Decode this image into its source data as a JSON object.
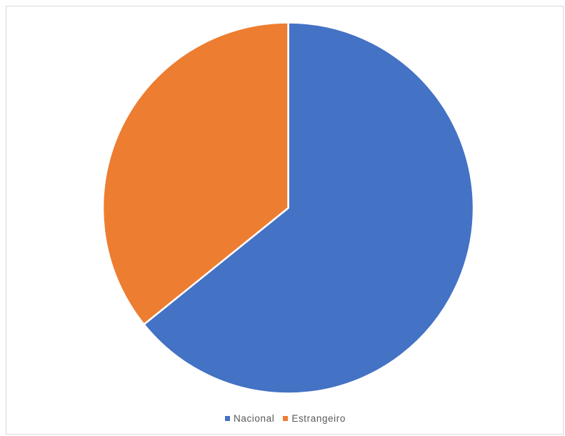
{
  "chart_data": {
    "type": "pie",
    "title": "",
    "slices": [
      {
        "name": "Nacional",
        "value": 64.2,
        "color": "#4472c4"
      },
      {
        "name": "Estrangeiro",
        "value": 35.8,
        "color": "#ed7d31"
      }
    ],
    "start_angle_deg": 0,
    "direction": "clockwise",
    "legend_placement": "bottom-center",
    "slice_border_color": "#ffffff"
  }
}
